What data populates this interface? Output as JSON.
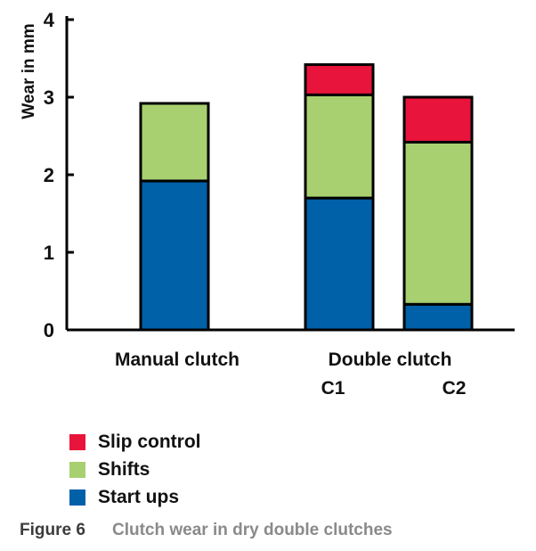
{
  "chart_data": {
    "type": "bar",
    "stacked": true,
    "ylabel": "Wear in mm",
    "ylim": [
      0,
      4
    ],
    "yticks": [
      "0",
      "1",
      "2",
      "3",
      "4"
    ],
    "grid": false,
    "groups": [
      {
        "label": "Manual clutch",
        "bars": [
          ""
        ]
      },
      {
        "label": "Double clutch",
        "bars": [
          "C1",
          "C2"
        ]
      }
    ],
    "categories": [
      "Manual clutch",
      "Double clutch C1",
      "Double clutch C2"
    ],
    "series": [
      {
        "name": "Start ups",
        "color": "#0060a8",
        "values": [
          1.92,
          1.7,
          0.33
        ]
      },
      {
        "name": "Shifts",
        "color": "#a8d070",
        "values": [
          1.0,
          1.33,
          2.09
        ]
      },
      {
        "name": "Slip control",
        "color": "#e8143c",
        "values": [
          0.0,
          0.39,
          0.58
        ]
      }
    ],
    "legend_position": "bottom-left"
  },
  "legend": {
    "items": [
      {
        "label": "Slip control",
        "color": "#e8143c"
      },
      {
        "label": "Shifts",
        "color": "#a8d070"
      },
      {
        "label": "Start ups",
        "color": "#0060a8"
      }
    ]
  },
  "caption": {
    "label": "Figure 6",
    "text": "Clutch wear in dry double clutches"
  }
}
